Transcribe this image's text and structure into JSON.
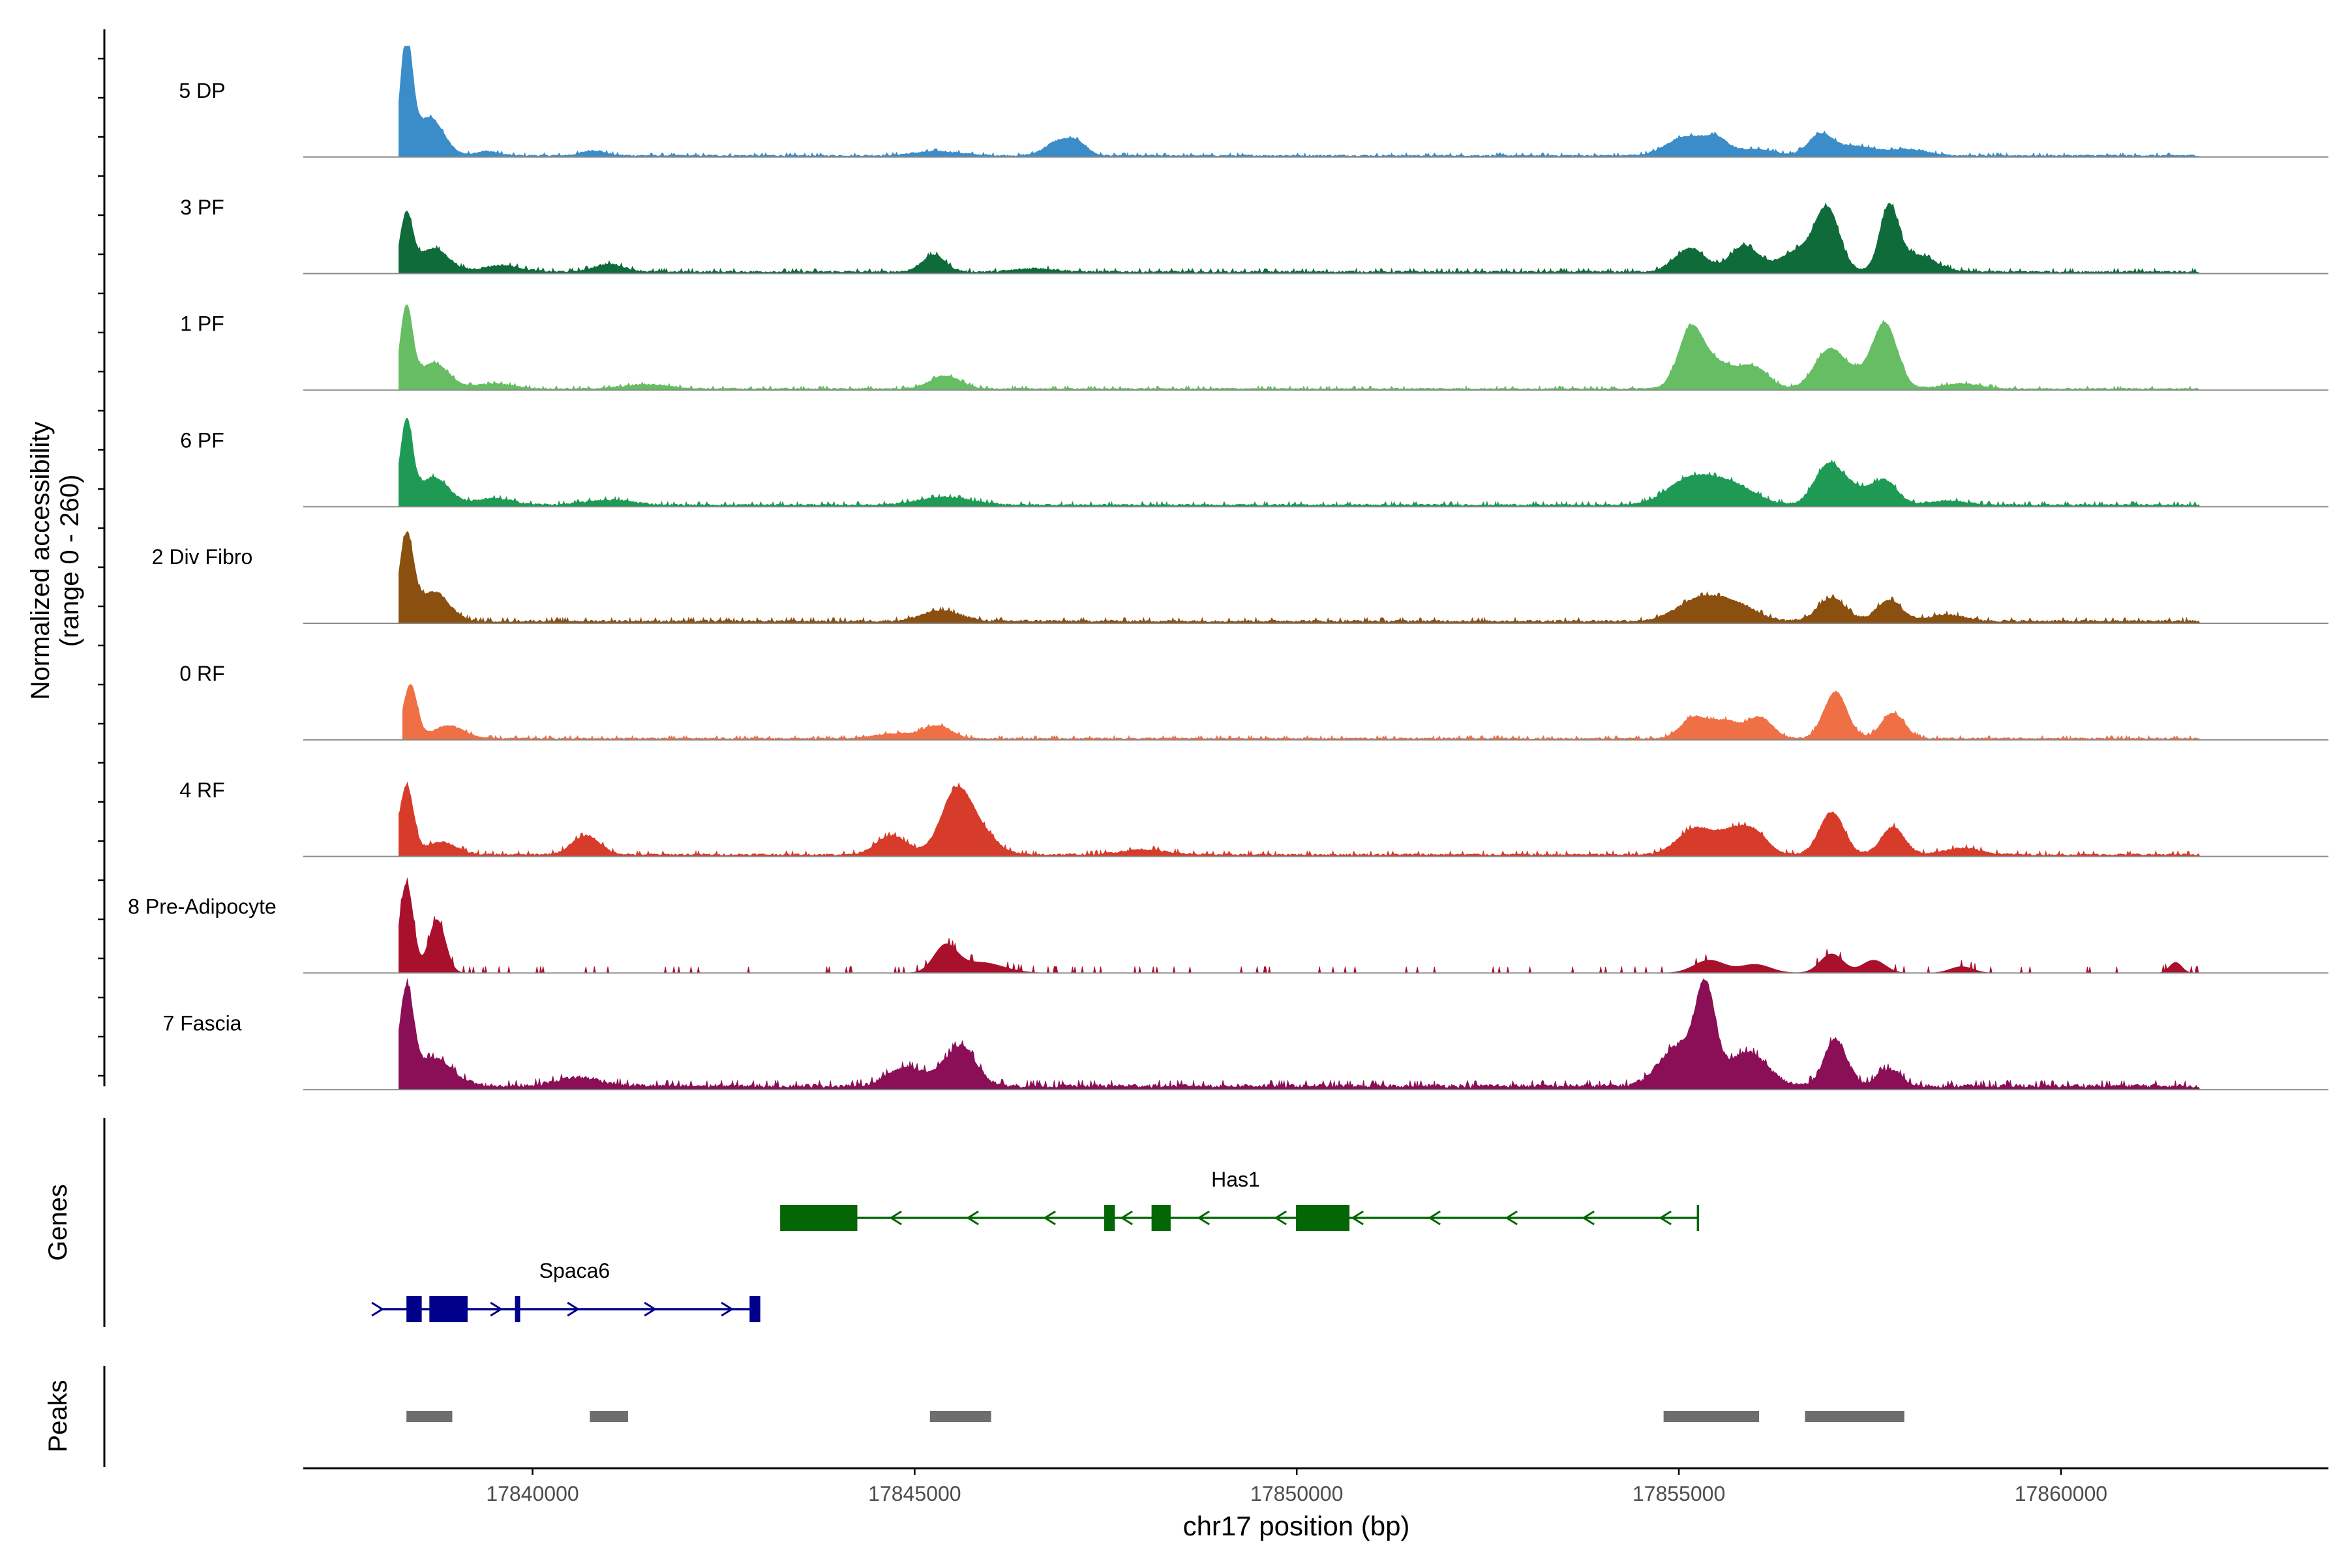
{
  "chart_data": {
    "type": "area",
    "title": "",
    "ylabel_line1": "Normalized accessibility",
    "ylabel_line2": "(range 0 - 260)",
    "xlabel": "chr17 position (bp)",
    "xlim": [
      17837000,
      17863500
    ],
    "ylim": [
      0,
      260
    ],
    "x_ticks": [
      17840000,
      17845000,
      17850000,
      17855000,
      17860000
    ],
    "x_tick_labels": [
      "17840000",
      "17845000",
      "17850000",
      "17855000",
      "17860000"
    ],
    "series": [
      {
        "name": "5 DP",
        "color": "#3a8dc8",
        "peaks": [
          [
            17838350,
            260,
            80
          ],
          [
            17838650,
            90,
            180
          ],
          [
            17839400,
            10,
            150
          ],
          [
            17840800,
            12,
            150
          ],
          [
            17845300,
            10,
            300
          ],
          [
            17846900,
            35,
            180
          ],
          [
            17847150,
            22,
            120
          ],
          [
            17855100,
            45,
            250
          ],
          [
            17855500,
            32,
            150
          ],
          [
            17856000,
            15,
            250
          ],
          [
            17856850,
            48,
            160
          ],
          [
            17857300,
            22,
            250
          ],
          [
            17858000,
            15,
            250
          ]
        ],
        "baseline": 4,
        "noise": 4
      },
      {
        "name": "3 PF",
        "color": "#0f6b3a",
        "peaks": [
          [
            17838350,
            130,
            80
          ],
          [
            17838700,
            55,
            200
          ],
          [
            17839600,
            15,
            250
          ],
          [
            17841000,
            18,
            200
          ],
          [
            17845250,
            40,
            150
          ],
          [
            17846600,
            8,
            250
          ],
          [
            17855150,
            55,
            200
          ],
          [
            17855850,
            60,
            180
          ],
          [
            17856950,
            120,
            150
          ],
          [
            17856650,
            55,
            300
          ],
          [
            17857750,
            145,
            120
          ],
          [
            17858100,
            40,
            250
          ]
        ],
        "baseline": 5,
        "noise": 5
      },
      {
        "name": "1 PF",
        "color": "#66bd63",
        "peaks": [
          [
            17838350,
            185,
            80
          ],
          [
            17838700,
            60,
            200
          ],
          [
            17839500,
            12,
            250
          ],
          [
            17841500,
            10,
            300
          ],
          [
            17845400,
            30,
            200
          ],
          [
            17855150,
            125,
            160
          ],
          [
            17855500,
            60,
            250
          ],
          [
            17856000,
            45,
            180
          ],
          [
            17856950,
            65,
            180
          ],
          [
            17857700,
            145,
            160
          ],
          [
            17857200,
            40,
            300
          ],
          [
            17858700,
            12,
            250
          ]
        ],
        "baseline": 4,
        "noise": 4
      },
      {
        "name": "6 PF",
        "color": "#1f9a55",
        "peaks": [
          [
            17838350,
            190,
            80
          ],
          [
            17838700,
            65,
            200
          ],
          [
            17839500,
            15,
            250
          ],
          [
            17841000,
            12,
            300
          ],
          [
            17845400,
            18,
            350
          ],
          [
            17855150,
            60,
            300
          ],
          [
            17855700,
            45,
            300
          ],
          [
            17856950,
            90,
            180
          ],
          [
            17857300,
            35,
            200
          ],
          [
            17857700,
            55,
            160
          ],
          [
            17858500,
            10,
            250
          ]
        ],
        "baseline": 5,
        "noise": 5
      },
      {
        "name": "2 Div Fibro",
        "color": "#8b4f10",
        "peaks": [
          [
            17838350,
            195,
            90
          ],
          [
            17838700,
            70,
            200
          ],
          [
            17845350,
            25,
            250
          ],
          [
            17855300,
            55,
            300
          ],
          [
            17855800,
            30,
            250
          ],
          [
            17857000,
            55,
            180
          ],
          [
            17857750,
            50,
            160
          ],
          [
            17858500,
            15,
            250
          ]
        ],
        "baseline": 6,
        "noise": 5
      },
      {
        "name": "0 RF",
        "color": "#f07045",
        "peaks": [
          [
            17838400,
            125,
            90
          ],
          [
            17838900,
            30,
            200
          ],
          [
            17844750,
            12,
            250
          ],
          [
            17845300,
            30,
            180
          ],
          [
            17855200,
            50,
            170
          ],
          [
            17855600,
            40,
            170
          ],
          [
            17856050,
            50,
            170
          ],
          [
            17857050,
            110,
            150
          ],
          [
            17857800,
            60,
            150
          ]
        ],
        "baseline": 4,
        "noise": 4
      },
      {
        "name": "4 RF",
        "color": "#d73b2a",
        "peaks": [
          [
            17838350,
            160,
            90
          ],
          [
            17838800,
            30,
            200
          ],
          [
            17840700,
            45,
            180
          ],
          [
            17844700,
            45,
            200
          ],
          [
            17845550,
            150,
            200
          ],
          [
            17845900,
            40,
            200
          ],
          [
            17848000,
            12,
            300
          ],
          [
            17855200,
            60,
            220
          ],
          [
            17855700,
            50,
            220
          ],
          [
            17856000,
            40,
            180
          ],
          [
            17857000,
            100,
            160
          ],
          [
            17857800,
            65,
            150
          ],
          [
            17858700,
            15,
            250
          ]
        ],
        "baseline": 5,
        "noise": 6
      },
      {
        "name": "8 Pre-Adipocyte",
        "color": "#a8102c",
        "peaks": [
          [
            17838350,
            210,
            90
          ],
          [
            17838750,
            125,
            110
          ],
          [
            17845400,
            60,
            150
          ],
          [
            17845850,
            25,
            300
          ],
          [
            17855400,
            30,
            200
          ],
          [
            17856000,
            20,
            200
          ],
          [
            17857000,
            45,
            150
          ],
          [
            17857550,
            30,
            150
          ],
          [
            17858700,
            15,
            150
          ],
          [
            17861500,
            25,
            80
          ]
        ],
        "baseline": 0,
        "noise": 12,
        "sparse": true
      },
      {
        "name": "7 Fascia",
        "color": "#8a0f56",
        "peaks": [
          [
            17838350,
            215,
            90
          ],
          [
            17838700,
            65,
            250
          ],
          [
            17840600,
            20,
            300
          ],
          [
            17844900,
            45,
            250
          ],
          [
            17845600,
            95,
            200
          ],
          [
            17855000,
            95,
            250
          ],
          [
            17855350,
            205,
            130
          ],
          [
            17855900,
            80,
            250
          ],
          [
            17857050,
            110,
            150
          ],
          [
            17857750,
            40,
            150
          ]
        ],
        "baseline": 10,
        "noise": 8
      }
    ],
    "genes_track_label": "Genes",
    "genes": [
      {
        "name": "Has1",
        "strand": "-",
        "color": "#046604",
        "start": 17843240,
        "end": 17855250,
        "exons": [
          [
            17843240,
            17844250
          ],
          [
            17847480,
            17847620
          ],
          [
            17848100,
            17848350
          ],
          [
            17849990,
            17850690
          ]
        ]
      },
      {
        "name": "Spaca6",
        "strand": "+",
        "color": "#00008b",
        "start": 17838000,
        "end": 17842980,
        "exons": [
          [
            17838350,
            17838550
          ],
          [
            17838650,
            17839150
          ],
          [
            17839770,
            17839830
          ],
          [
            17842840,
            17842980
          ]
        ]
      }
    ],
    "peaks_track_label": "Peaks",
    "peak_regions": [
      [
        17838350,
        17838950
      ],
      [
        17840750,
        17841250
      ],
      [
        17845200,
        17846000
      ],
      [
        17854800,
        17856050
      ],
      [
        17856650,
        17857950
      ]
    ]
  }
}
